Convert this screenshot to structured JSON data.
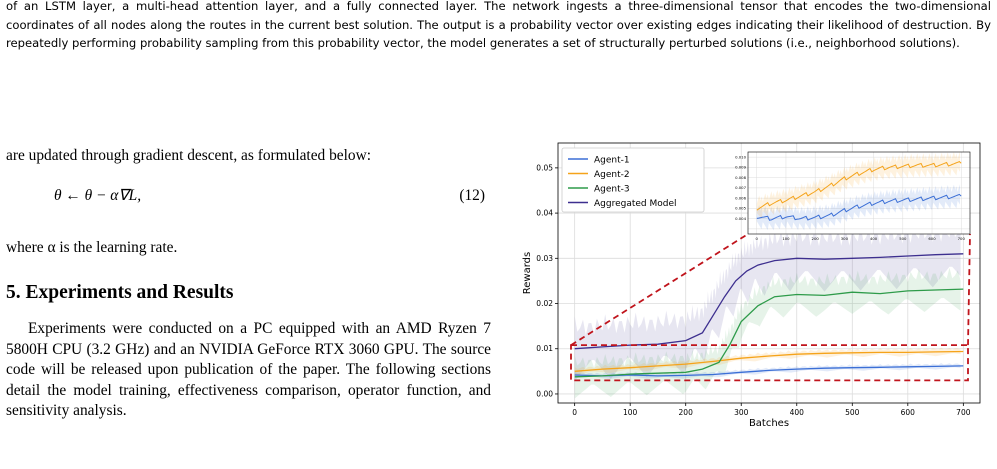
{
  "caption": {
    "text": "of an LSTM layer, a multi-head attention layer, and a fully connected layer. The network ingests a three-dimensional tensor that encodes the two-dimensional coordinates of all nodes along the routes in the current best solution. The output is a probability vector over existing edges indicating their likelihood of destruction. By repeatedly performing probability sampling from this probability vector, the model generates a set of structurally perturbed solutions (i.e., neighborhood solutions)."
  },
  "left_column": {
    "intro": "are updated through gradient descent, as formulated below:",
    "equation": "θ ← θ − α∇L,",
    "equation_number": "(12)",
    "where": "where α is the learning rate.",
    "section_title": "5. Experiments and Results",
    "section_body": "Experiments were conducted on a PC equipped with an AMD Ryzen 7 5800H CPU (3.2 GHz) and an NVIDIA GeForce RTX 3060 GPU. The source code will be released upon publication of the paper. The following sections detail the model training, effectiveness comparison, operator function, and sensitivity analysis."
  },
  "chart_data": [
    {
      "type": "line",
      "xlabel": "Batches",
      "ylabel": "Rewards",
      "xlim": [
        -30,
        730
      ],
      "ylim": [
        -0.002,
        0.0555
      ],
      "xticks": [
        0,
        100,
        200,
        300,
        400,
        500,
        600,
        700
      ],
      "yticks": [
        0.0,
        0.01,
        0.02,
        0.03,
        0.04,
        0.05
      ],
      "ytick_labels": [
        "0.00",
        "0.01",
        "0.02",
        "0.03",
        "0.04",
        "0.05"
      ],
      "grid": true,
      "legend_position": "top-left",
      "series": [
        {
          "name": "Agent-1",
          "color": "#3b6fd6",
          "x": [
            0,
            50,
            100,
            150,
            200,
            250,
            300,
            350,
            400,
            450,
            500,
            550,
            600,
            650,
            700
          ],
          "values": [
            0.0042,
            0.004,
            0.0042,
            0.004,
            0.0041,
            0.0043,
            0.0048,
            0.0052,
            0.0055,
            0.0057,
            0.0058,
            0.0059,
            0.006,
            0.0061,
            0.0062
          ]
        },
        {
          "name": "Agent-2",
          "color": "#f5a31a",
          "x": [
            0,
            50,
            100,
            150,
            200,
            250,
            300,
            350,
            400,
            450,
            500,
            550,
            600,
            650,
            700
          ],
          "values": [
            0.005,
            0.0055,
            0.0058,
            0.0062,
            0.0066,
            0.0072,
            0.0079,
            0.0084,
            0.0088,
            0.009,
            0.0091,
            0.0092,
            0.0092,
            0.0093,
            0.0094
          ]
        },
        {
          "name": "Agent-3",
          "color": "#2e9b4a",
          "x": [
            0,
            50,
            100,
            150,
            200,
            230,
            260,
            280,
            300,
            330,
            360,
            400,
            450,
            500,
            550,
            600,
            650,
            700
          ],
          "values": [
            0.0038,
            0.004,
            0.0044,
            0.0046,
            0.0048,
            0.0055,
            0.007,
            0.011,
            0.016,
            0.0195,
            0.0215,
            0.022,
            0.0218,
            0.0225,
            0.0222,
            0.0228,
            0.023,
            0.0232
          ]
        },
        {
          "name": "Aggregated Model",
          "color": "#3d2f8f",
          "x": [
            0,
            50,
            100,
            150,
            200,
            230,
            250,
            270,
            290,
            310,
            330,
            360,
            400,
            450,
            500,
            550,
            600,
            650,
            700
          ],
          "values": [
            0.01,
            0.0104,
            0.0108,
            0.011,
            0.0118,
            0.0135,
            0.0175,
            0.0215,
            0.025,
            0.0272,
            0.0285,
            0.0295,
            0.03,
            0.0298,
            0.03,
            0.0302,
            0.0305,
            0.0308,
            0.031
          ]
        }
      ]
    },
    {
      "type": "line",
      "title": "",
      "xlim": [
        -30,
        730
      ],
      "ylim": [
        0.0025,
        0.0105
      ],
      "xticks": [
        0,
        100,
        200,
        300,
        400,
        500,
        600,
        700
      ],
      "yticks": [
        0.003,
        0.004,
        0.005,
        0.006,
        0.007,
        0.008,
        0.009,
        0.01
      ],
      "ytick_labels": [
        "",
        "0.004",
        "0.005",
        "0.006",
        "0.007",
        "0.008",
        "0.009",
        "0.010"
      ],
      "grid": true,
      "series": [
        {
          "name": "Agent-1",
          "color": "#3b6fd6",
          "x": [
            0,
            50,
            100,
            150,
            200,
            250,
            300,
            350,
            400,
            450,
            500,
            550,
            600,
            650,
            700
          ],
          "values": [
            0.0042,
            0.004,
            0.0042,
            0.004,
            0.0041,
            0.0043,
            0.0048,
            0.0052,
            0.0055,
            0.0057,
            0.0058,
            0.0059,
            0.006,
            0.0061,
            0.0062
          ]
        },
        {
          "name": "Agent-2",
          "color": "#f5a31a",
          "x": [
            0,
            50,
            100,
            150,
            200,
            250,
            300,
            350,
            400,
            450,
            500,
            550,
            600,
            650,
            700
          ],
          "values": [
            0.005,
            0.0055,
            0.0058,
            0.0062,
            0.0066,
            0.0072,
            0.0079,
            0.0084,
            0.0088,
            0.009,
            0.0091,
            0.0092,
            0.0092,
            0.0093,
            0.0094
          ]
        }
      ]
    }
  ],
  "colors": {
    "zoom_box": "#c0141c",
    "grid": "#dcdcdc"
  }
}
